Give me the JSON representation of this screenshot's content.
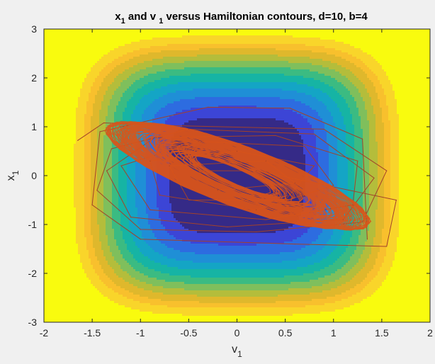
{
  "chart_data": {
    "type": "contour",
    "title": {
      "parts": [
        {
          "text": "x",
          "sub": "1"
        },
        {
          "text": " and v ",
          "sub": "1"
        },
        {
          "text": " versus Hamiltonian contours, d=10, b=4",
          "sub": ""
        }
      ]
    },
    "xlabel": {
      "main": "v",
      "sub": "1"
    },
    "ylabel": {
      "main": "x",
      "sub": "1"
    },
    "xlim": [
      -2,
      2
    ],
    "ylim": [
      -3,
      3
    ],
    "xticks": [
      -2,
      -1.5,
      -1,
      -0.5,
      0,
      0.5,
      1,
      1.5,
      2
    ],
    "xtick_labels": [
      "-2",
      "-1.5",
      "-1",
      "-0.5",
      "0",
      "0.5",
      "1",
      "1.5",
      "2"
    ],
    "yticks": [
      -3,
      -2,
      -1,
      0,
      1,
      2,
      3
    ],
    "ytick_labels": [
      "-3",
      "-2",
      "-1",
      "0",
      "1",
      "2",
      "3"
    ],
    "grid": false,
    "contours": {
      "field": "H(v1, x1) = 2.5*v1^4 + 0.3*x1^4",
      "levels": [
        0,
        0.6,
        1.2,
        2.0,
        3.0,
        4.2,
        5.6,
        7.2,
        9.0,
        11.0,
        13.5,
        16.0,
        20.0
      ],
      "colors": [
        "#352a87",
        "#3c45d6",
        "#2d6ce0",
        "#1f8fd6",
        "#14a5c5",
        "#16b4a4",
        "#3bbb82",
        "#7fbf5c",
        "#b4bd3b",
        "#dfb82c",
        "#f8c02d",
        "#f9d52a",
        "#f9fb0e"
      ]
    },
    "series": [
      {
        "color": "#d95319",
        "line_color_b": "#a2422a",
        "points": [
          [
            -1.65,
            0.72
          ],
          [
            -1.38,
            1.08
          ],
          [
            -0.6,
            1.02
          ],
          [
            0.9,
            0.95
          ],
          [
            1.55,
            0.1
          ],
          [
            1.3,
            -0.95
          ],
          [
            0.2,
            -1.15
          ],
          [
            -1.0,
            -1.1
          ],
          [
            -1.45,
            -0.3
          ],
          [
            -1.3,
            0.55
          ],
          [
            -0.5,
            0.95
          ],
          [
            0.8,
            0.85
          ],
          [
            1.42,
            -0.05
          ],
          [
            1.1,
            -0.9
          ],
          [
            -0.1,
            -1.05
          ],
          [
            -1.1,
            -0.85
          ],
          [
            -1.35,
            0.1
          ],
          [
            -0.85,
            0.78
          ],
          [
            0.4,
            0.82
          ],
          [
            1.25,
            0.3
          ],
          [
            1.2,
            -0.6
          ],
          [
            0.3,
            -0.9
          ],
          [
            -0.9,
            -0.7
          ],
          [
            -1.2,
            0.2
          ],
          [
            -0.4,
            0.7
          ],
          [
            0.7,
            0.6
          ],
          [
            1.0,
            -0.2
          ],
          [
            0.2,
            -0.7
          ],
          [
            -0.8,
            -0.4
          ],
          [
            -0.9,
            0.3
          ],
          [
            0.0,
            0.5
          ],
          [
            0.8,
            0.2
          ],
          [
            0.5,
            -0.5
          ],
          [
            -0.5,
            -0.5
          ],
          [
            -0.7,
            0.2
          ],
          [
            0.3,
            0.3
          ],
          [
            0.6,
            -0.15
          ],
          [
            -0.2,
            -0.3
          ],
          [
            -0.4,
            0.1
          ],
          [
            0.2,
            0.1
          ],
          [
            1.65,
            -0.5
          ],
          [
            1.55,
            -1.45
          ],
          [
            0.6,
            -1.4
          ],
          [
            -1.0,
            -1.3
          ],
          [
            -1.5,
            -0.6
          ],
          [
            -1.42,
            0.9
          ],
          [
            -0.3,
            1.4
          ],
          [
            0.55,
            1.38
          ],
          [
            1.3,
            0.75
          ],
          [
            1.35,
            -1.3
          ]
        ]
      }
    ]
  }
}
